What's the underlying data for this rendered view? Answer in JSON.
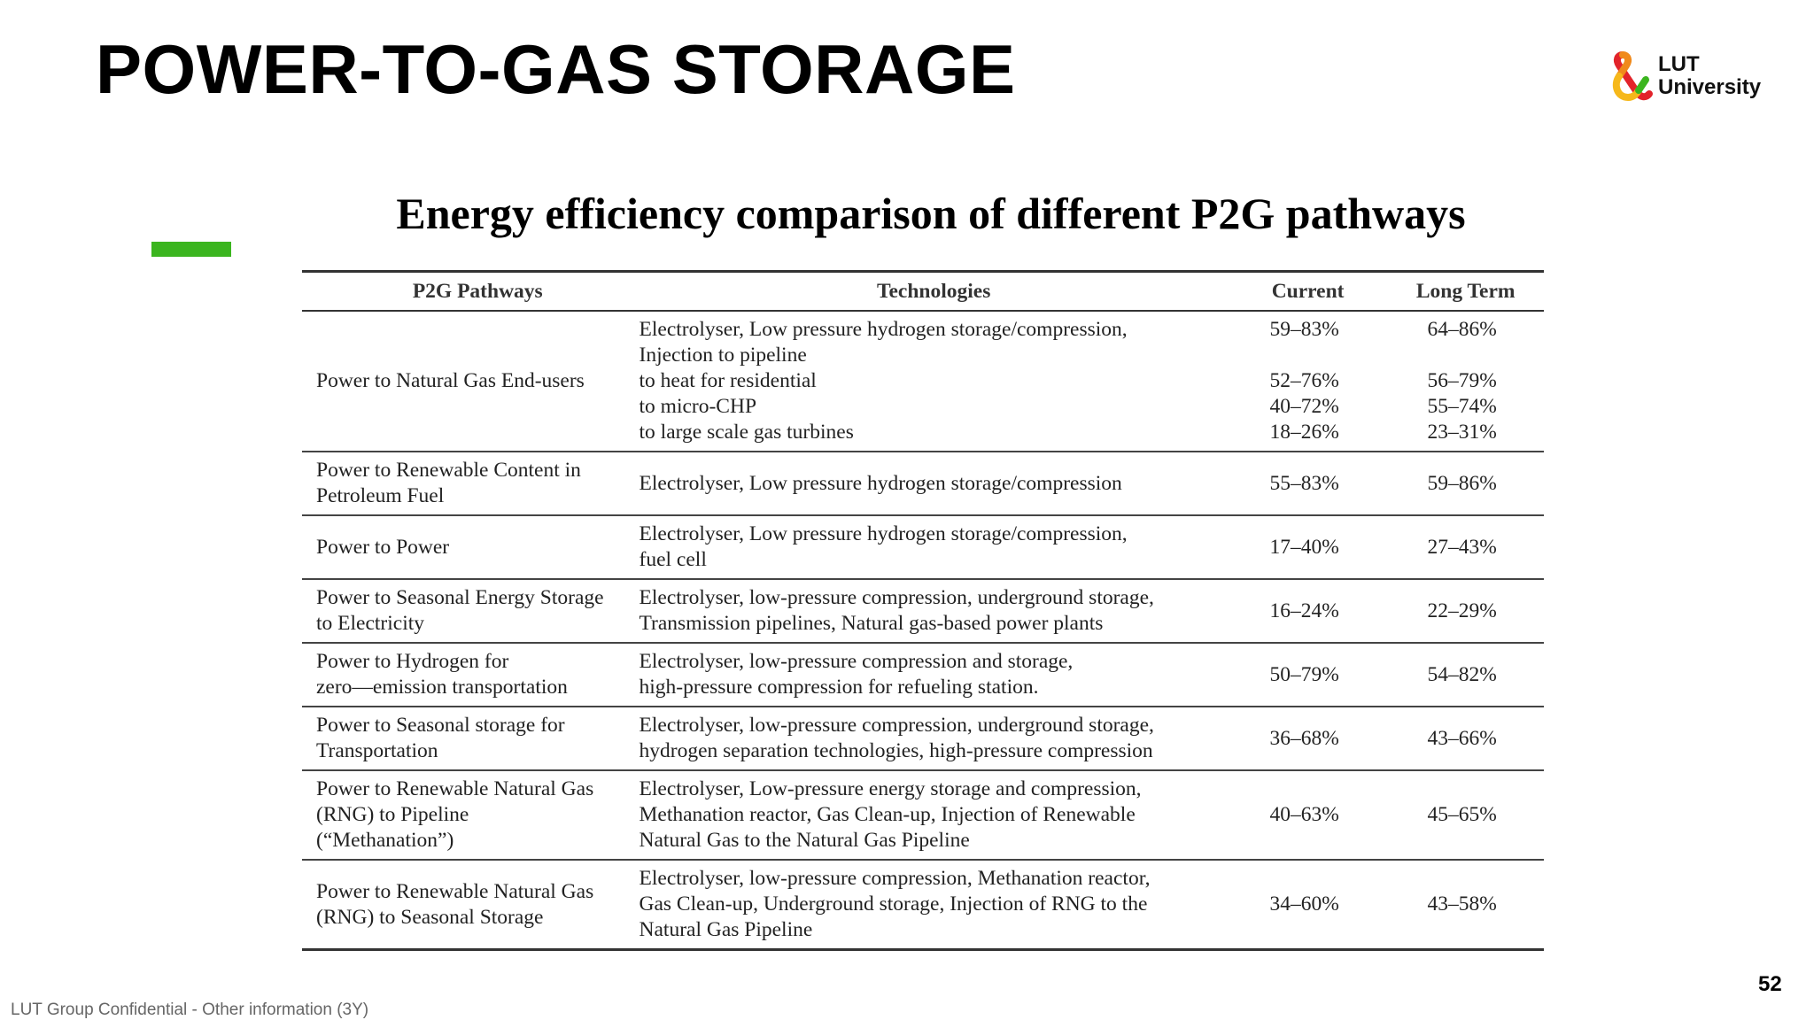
{
  "slide": {
    "title": "POWER-TO-GAS STORAGE",
    "page_number": "52",
    "footer": "LUT Group Confidential - Other information (3Y)",
    "accent_color": "#3bb51f"
  },
  "logo": {
    "line1": "LUT",
    "line2": "University",
    "icon": "lut-ampersand-logo-icon"
  },
  "table": {
    "title": "Energy efficiency comparison of different P2G pathways",
    "headers": {
      "pathway": "P2G Pathways",
      "technologies": "Technologies",
      "current": "Current",
      "long_term": "Long Term"
    },
    "rows": [
      {
        "pathway": [
          "Power to Natural Gas End-users"
        ],
        "technologies": [
          "Electrolyser, Low pressure hydrogen storage/compression,",
          "Injection to pipeline",
          "to heat for residential",
          "to micro-CHP",
          "to large scale gas turbines"
        ],
        "current": [
          "59–83%",
          "52–76%",
          "40–72%",
          "18–26%"
        ],
        "long_term": [
          "64–86%",
          "56–79%",
          "55–74%",
          "23–31%"
        ]
      },
      {
        "pathway": [
          "Power to Renewable Content in",
          "Petroleum Fuel"
        ],
        "technologies": [
          "Electrolyser, Low pressure hydrogen storage/compression"
        ],
        "current": [
          "55–83%"
        ],
        "long_term": [
          "59–86%"
        ]
      },
      {
        "pathway": [
          "Power to Power"
        ],
        "technologies": [
          "Electrolyser, Low pressure hydrogen storage/compression,",
          "fuel cell"
        ],
        "current": [
          "17–40%"
        ],
        "long_term": [
          "27–43%"
        ]
      },
      {
        "pathway": [
          "Power to Seasonal Energy Storage",
          "to Electricity"
        ],
        "technologies": [
          "Electrolyser, low-pressure compression, underground storage,",
          "Transmission pipelines, Natural gas-based power plants"
        ],
        "current": [
          "16–24%"
        ],
        "long_term": [
          "22–29%"
        ]
      },
      {
        "pathway": [
          "Power to Hydrogen for",
          "zero—emission transportation"
        ],
        "technologies": [
          "Electrolyser, low-pressure compression and storage,",
          "high-pressure compression for refueling station."
        ],
        "current": [
          "50–79%"
        ],
        "long_term": [
          "54–82%"
        ]
      },
      {
        "pathway": [
          "Power to Seasonal storage for",
          "Transportation"
        ],
        "technologies": [
          "Electrolyser, low-pressure compression, underground storage,",
          "hydrogen separation technologies, high-pressure compression"
        ],
        "current": [
          "36–68%"
        ],
        "long_term": [
          "43–66%"
        ]
      },
      {
        "pathway": [
          "Power to Renewable Natural Gas",
          "(RNG) to Pipeline",
          "(“Methanation”)"
        ],
        "technologies": [
          "Electrolyser, Low-pressure energy storage and compression,",
          "Methanation reactor, Gas Clean-up, Injection of Renewable",
          "Natural Gas to the Natural Gas Pipeline"
        ],
        "current": [
          "40–63%"
        ],
        "long_term": [
          "45–65%"
        ]
      },
      {
        "pathway": [
          "Power to Renewable Natural Gas",
          "(RNG) to Seasonal Storage"
        ],
        "technologies": [
          "Electrolyser, low-pressure compression, Methanation reactor,",
          "Gas Clean-up, Underground storage, Injection of RNG to the",
          "Natural Gas Pipeline"
        ],
        "current": [
          "34–60%"
        ],
        "long_term": [
          "43–58%"
        ]
      }
    ]
  }
}
